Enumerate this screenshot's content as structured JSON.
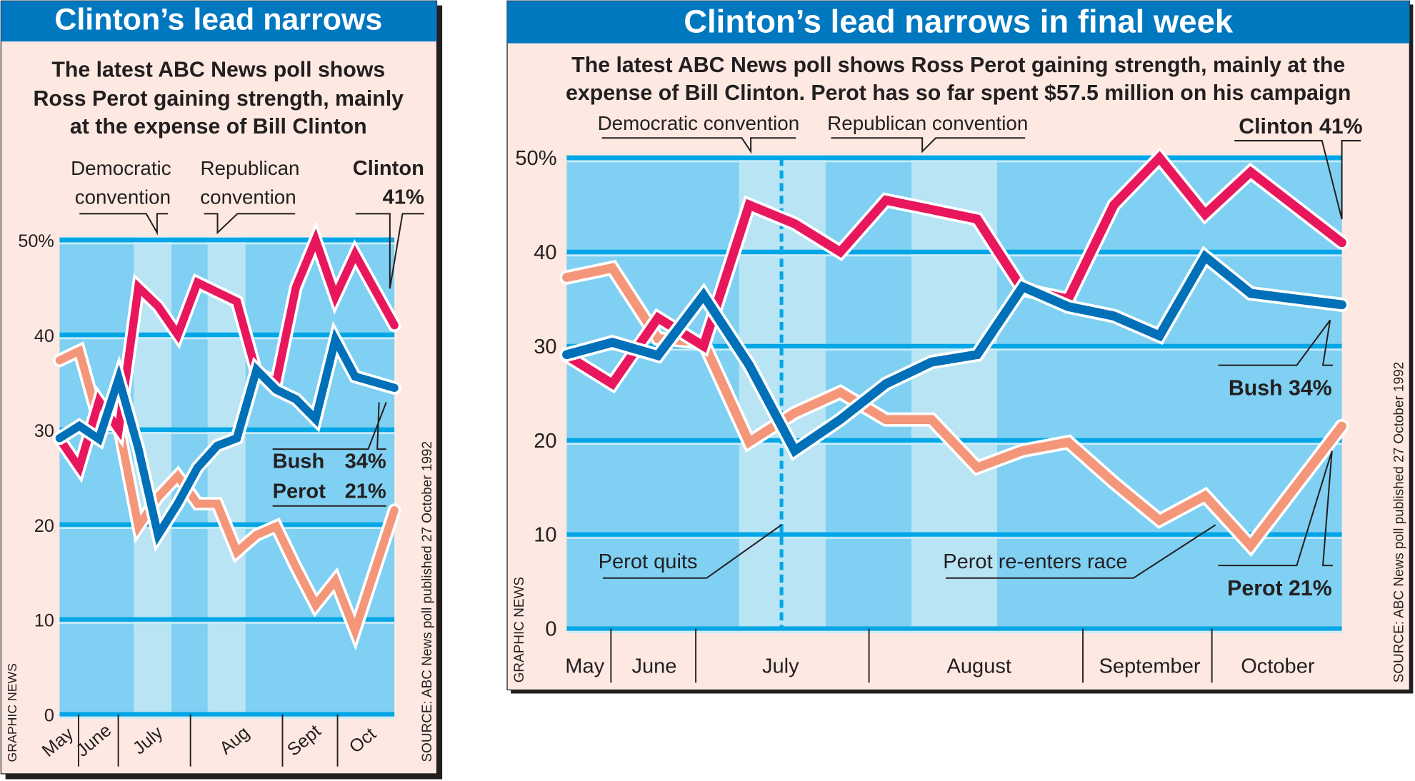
{
  "colors": {
    "clinton": "#e8175d",
    "bush": "#0070b8",
    "perot": "#f4967a",
    "title_bar": "#0078c0",
    "panel_bg": "#fde9e2",
    "plot_bg": "#7fd0f2",
    "convention_band": "#b9e4f4",
    "gridline": "#00a6e6"
  },
  "chart_data": [
    {
      "type": "line",
      "title": "Clinton’s lead narrows",
      "subtitle": [
        "The latest ABC News poll shows",
        "Ross Perot gaining strength, mainly",
        "at the expense of Bill Clinton"
      ],
      "ylim": [
        0,
        50
      ],
      "yticks": [
        "0",
        "10",
        "20",
        "30",
        "40",
        "50%"
      ],
      "xticks": [
        "May",
        "June",
        "July",
        "Aug",
        "Sept",
        "Oct"
      ],
      "grid": true,
      "annotations": {
        "dem_convention": [
          "Democratic",
          "convention"
        ],
        "rep_convention": [
          "Republican",
          "convention"
        ],
        "clinton": [
          "Clinton",
          "41%"
        ],
        "bush_name": "Bush",
        "bush_value": "34%",
        "perot_name": "Perot",
        "perot_value": "21%"
      },
      "credit": "GRAPHIC NEWS",
      "source": "SOURCE:  ABC News poll published 27 October 1992"
    },
    {
      "type": "line",
      "title": "Clinton’s lead narrows in final week",
      "subtitle": [
        "The latest ABC News poll shows Ross Perot gaining strength, mainly at the",
        "expense of Bill Clinton. Perot has so far spent $57.5 million on his campaign"
      ],
      "ylim": [
        0,
        50
      ],
      "yticks": [
        "0",
        "10",
        "20",
        "30",
        "40",
        "50%"
      ],
      "xticks": [
        "May",
        "June",
        "July",
        "August",
        "September",
        "October"
      ],
      "grid": true,
      "annotations": {
        "dem_convention": "Democratic convention",
        "rep_convention": "Republican convention",
        "clinton": "Clinton 41%",
        "bush": "Bush 34%",
        "perot": "Perot 21%",
        "perot_quits": "Perot quits",
        "perot_reenters": "Perot re-enters race"
      },
      "credit": "GRAPHIC NEWS",
      "source": "SOURCE:  ABC News poll published 27 October 1992"
    }
  ],
  "series": [
    {
      "key": "perot",
      "name": "Perot",
      "values": [
        37.3,
        38.3,
        30.8,
        30.4,
        19.8,
        22.9,
        25.1,
        22.2,
        22.2,
        17.1,
        18.9,
        19.8,
        15.5,
        11.5,
        14.1,
        8.8,
        21.5
      ]
    },
    {
      "key": "clinton",
      "name": "Clinton",
      "values": [
        29,
        26,
        33,
        30,
        45,
        43,
        40,
        45.5,
        44.5,
        43.5,
        36,
        35,
        45,
        50,
        44,
        48.5,
        41
      ]
    },
    {
      "key": "bush",
      "name": "Bush",
      "values": [
        29.1,
        30.4,
        29,
        35.4,
        28,
        18.9,
        22.2,
        26,
        28.3,
        29.1,
        36.3,
        34.2,
        33.2,
        31.1,
        39.5,
        35.6,
        34.4
      ]
    }
  ]
}
